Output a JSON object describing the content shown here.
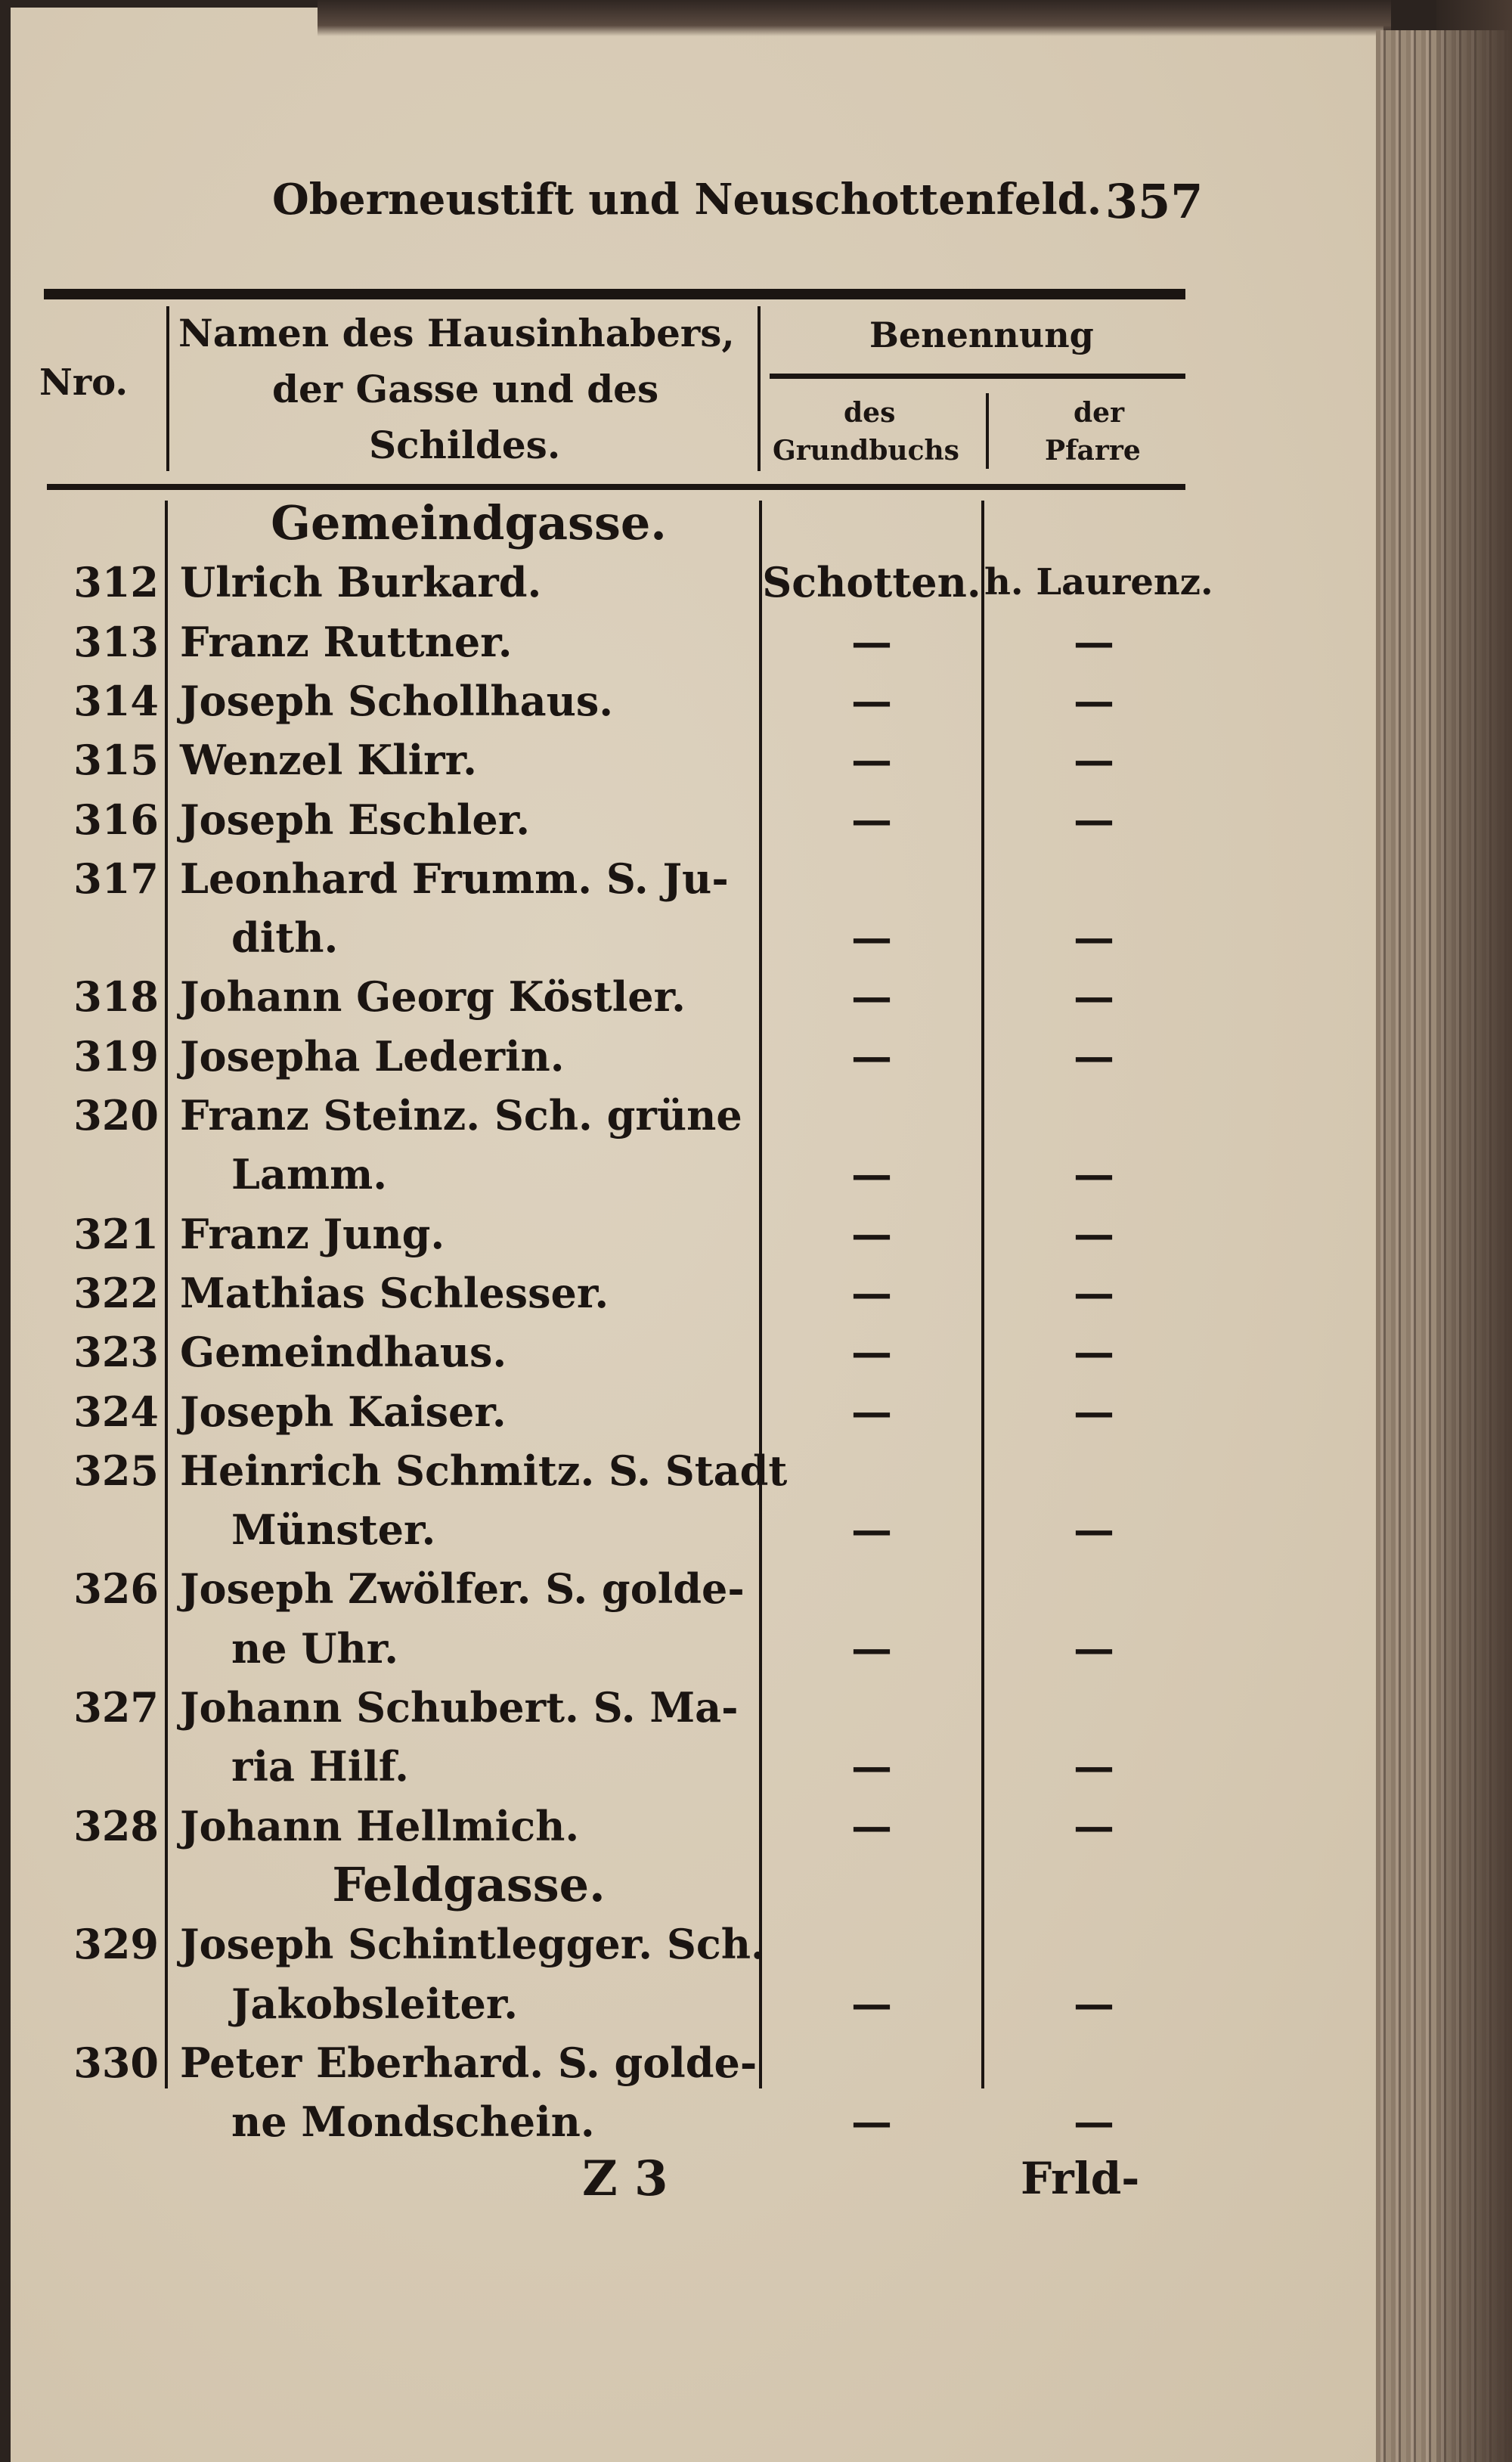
{
  "running_head": {
    "title": "Oberneustift und Neuschottenfeld.",
    "page_number": "357"
  },
  "table_header": {
    "nro": "Nro.",
    "name_lines": [
      "Namen des Hausinhabers,",
      "der Gasse und des",
      "Schildes."
    ],
    "benennung": "Benennung",
    "grundbuch_lines": [
      "des",
      "Grundbuchs"
    ],
    "pfarre_lines": [
      "der",
      "Pfarre"
    ]
  },
  "rows": [
    {
      "type": "street",
      "name": "Gemeindgasse."
    },
    {
      "type": "entry",
      "nr": "312",
      "lines": [
        "Ulrich Burkard."
      ],
      "grundbuch": "Schotten.",
      "pfarre": "h. Laurenz."
    },
    {
      "type": "entry",
      "nr": "313",
      "lines": [
        "Franz Ruttner."
      ],
      "grundbuch": "—",
      "pfarre": "—"
    },
    {
      "type": "entry",
      "nr": "314",
      "lines": [
        "Joseph Schollhaus."
      ],
      "grundbuch": "—",
      "pfarre": "—"
    },
    {
      "type": "entry",
      "nr": "315",
      "lines": [
        "Wenzel Klirr."
      ],
      "grundbuch": "—",
      "pfarre": "—"
    },
    {
      "type": "entry",
      "nr": "316",
      "lines": [
        "Joseph Eschler."
      ],
      "grundbuch": "—",
      "pfarre": "—"
    },
    {
      "type": "entry",
      "nr": "317",
      "lines": [
        "Leonhard Frumm. S. Ju-",
        "dith."
      ],
      "grundbuch": "—",
      "pfarre": "—"
    },
    {
      "type": "entry",
      "nr": "318",
      "lines": [
        "Johann Georg Köstler."
      ],
      "grundbuch": "—",
      "pfarre": "—"
    },
    {
      "type": "entry",
      "nr": "319",
      "lines": [
        "Josepha Lederin."
      ],
      "grundbuch": "—",
      "pfarre": "—"
    },
    {
      "type": "entry",
      "nr": "320",
      "lines": [
        "Franz Steinz. Sch. grüne",
        "Lamm."
      ],
      "grundbuch": "—",
      "pfarre": "—"
    },
    {
      "type": "entry",
      "nr": "321",
      "lines": [
        "Franz Jung."
      ],
      "grundbuch": "—",
      "pfarre": "—"
    },
    {
      "type": "entry",
      "nr": "322",
      "lines": [
        "Mathias Schlesser."
      ],
      "grundbuch": "—",
      "pfarre": "—"
    },
    {
      "type": "entry",
      "nr": "323",
      "lines": [
        "Gemeindhaus."
      ],
      "grundbuch": "—",
      "pfarre": "—"
    },
    {
      "type": "entry",
      "nr": "324",
      "lines": [
        "Joseph Kaiser."
      ],
      "grundbuch": "—",
      "pfarre": "—"
    },
    {
      "type": "entry",
      "nr": "325",
      "lines": [
        "Heinrich Schmitz. S. Stadt",
        "Münster."
      ],
      "grundbuch": "—",
      "pfarre": "—"
    },
    {
      "type": "entry",
      "nr": "326",
      "lines": [
        "Joseph Zwölfer. S. golde-",
        "ne Uhr."
      ],
      "grundbuch": "—",
      "pfarre": "—"
    },
    {
      "type": "entry",
      "nr": "327",
      "lines": [
        "Johann Schubert. S. Ma-",
        "ria Hilf."
      ],
      "grundbuch": "—",
      "pfarre": "—"
    },
    {
      "type": "entry",
      "nr": "328",
      "lines": [
        "Johann Hellmich."
      ],
      "grundbuch": "—",
      "pfarre": "—"
    },
    {
      "type": "street",
      "name": "Feldgasse."
    },
    {
      "type": "entry",
      "nr": "329",
      "lines": [
        "Joseph Schintlegger. Sch.",
        "Jakobsleiter."
      ],
      "grundbuch": "—",
      "pfarre": "—"
    },
    {
      "type": "entry",
      "nr": "330",
      "lines": [
        "Peter Eberhard. S. golde-",
        "ne Mondschein."
      ],
      "grundbuch": "—",
      "pfarre": "—"
    }
  ],
  "footer": {
    "signature": "Z 3",
    "catchword": "Frld-"
  }
}
